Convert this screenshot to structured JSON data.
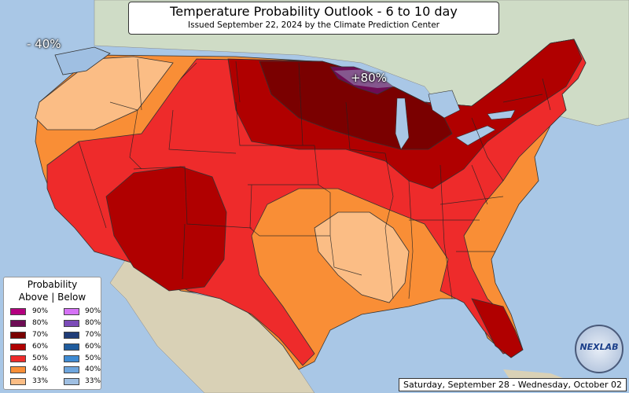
{
  "title": "Temperature Probability Outlook - 6 to 10 day",
  "subtitle": "Issued September 22, 2024 by the Climate Prediction Center",
  "date_range": "Saturday, September 28 - Wednesday, October 02",
  "labels": {
    "below_40": "- 40%",
    "above_80": "+80%"
  },
  "legend": {
    "title_line1": "Probability",
    "title_line2": "Above | Below",
    "above": [
      {
        "label": "90%",
        "color": "#b4007f"
      },
      {
        "label": "80%",
        "color": "#6d0c54"
      },
      {
        "label": "70%",
        "color": "#7a0000"
      },
      {
        "label": "60%",
        "color": "#b00000"
      },
      {
        "label": "50%",
        "color": "#ee2b2b"
      },
      {
        "label": "40%",
        "color": "#f98e36"
      },
      {
        "label": "33%",
        "color": "#fbbd85"
      }
    ],
    "below": [
      {
        "label": "90%",
        "color": "#d572f5"
      },
      {
        "label": "80%",
        "color": "#7b4bb8"
      },
      {
        "label": "70%",
        "color": "#1f3c78"
      },
      {
        "label": "60%",
        "color": "#1f5c9e"
      },
      {
        "label": "50%",
        "color": "#3f8bd3"
      },
      {
        "label": "40%",
        "color": "#6ea6de"
      },
      {
        "label": "33%",
        "color": "#9fbfe2"
      }
    ]
  },
  "logo_text": "NEXLAB"
}
